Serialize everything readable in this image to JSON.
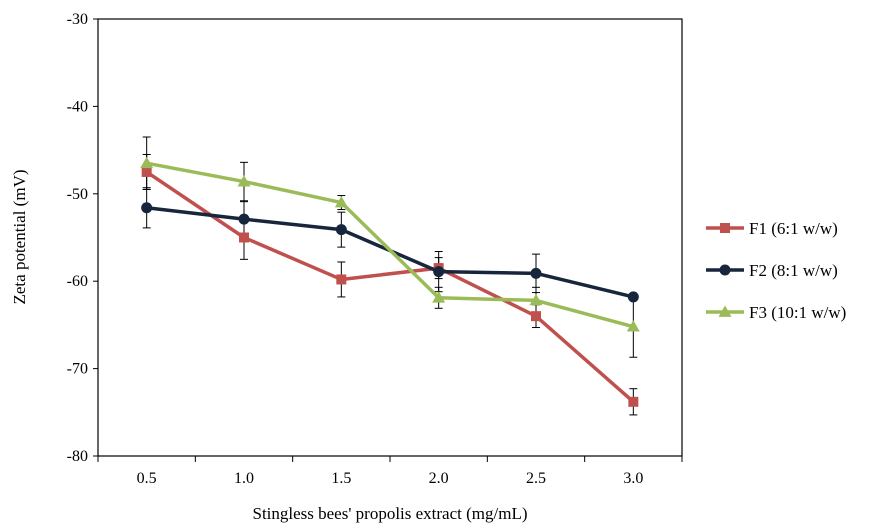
{
  "chart_data": {
    "type": "line",
    "title": "",
    "xlabel": "Stingless bees' propolis extract (mg/mL)",
    "ylabel": "Zeta potential (mV)",
    "x": [
      "0.5",
      "1.0",
      "1.5",
      "2.0",
      "2.5",
      "3.0"
    ],
    "ylim": [
      -80,
      -30
    ],
    "yticks": [
      "-30",
      "-40",
      "-50",
      "-60",
      "-70",
      "-80"
    ],
    "grid": false,
    "legend_position": "right",
    "series": [
      {
        "name": "F1 (6:1 w/w)",
        "color": "#c0504d",
        "marker": "square",
        "values": [
          -47.5,
          -55.0,
          -59.8,
          -58.5,
          -64.0,
          -73.8
        ],
        "errors": [
          2.0,
          2.5,
          2.0,
          1.2,
          1.3,
          1.5
        ]
      },
      {
        "name": "F2 (8:1 w/w)",
        "color": "#17263d",
        "marker": "circle",
        "values": [
          -51.6,
          -52.9,
          -54.1,
          -58.9,
          -59.1,
          -61.8
        ],
        "errors": [
          2.3,
          2.0,
          2.0,
          2.3,
          2.2,
          0.0
        ]
      },
      {
        "name": "F3 (10:1 w/w)",
        "color": "#9bbb59",
        "marker": "triangle",
        "values": [
          -46.5,
          -48.6,
          -51.0,
          -61.9,
          -62.2,
          -65.2
        ],
        "errors": [
          3.0,
          2.2,
          0.8,
          1.2,
          1.5,
          3.5
        ]
      }
    ]
  }
}
